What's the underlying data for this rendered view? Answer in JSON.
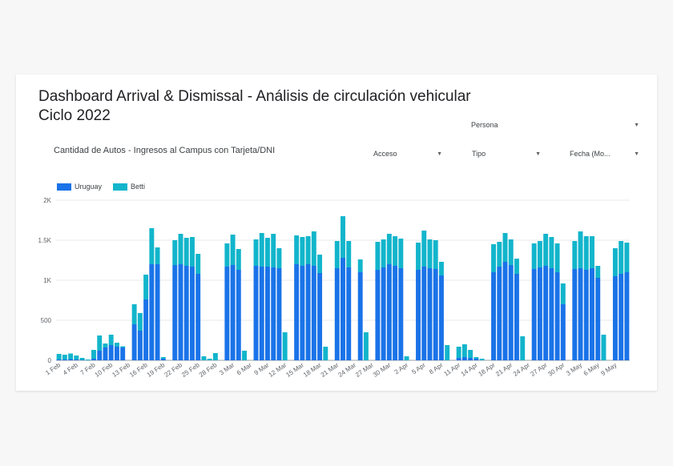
{
  "dashboard": {
    "title": "Dashboard Arrival & Dismissal - Análisis de circulación vehicular",
    "subtitle": "Ciclo 2022"
  },
  "filters": {
    "persona": "Persona",
    "acceso": "Acceso",
    "tipo": "Tipo",
    "fecha": "Fecha (Mo..."
  },
  "icons": {
    "dropdown": "caret-down-icon"
  },
  "colors": {
    "uruguay": "#1a73e8",
    "betti": "#12b5cb",
    "grid": "#e8eaed",
    "axis": "#9aa0a6"
  },
  "chart_data": {
    "type": "bar",
    "stacked": true,
    "title": "Cantidad de Autos - Ingresos al Campus con Tarjeta/DNI",
    "ylim": [
      0,
      2000
    ],
    "yticks": [
      0,
      500,
      1000,
      1500,
      2000
    ],
    "ytick_labels": [
      "0",
      "500",
      "1K",
      "1.5K",
      "2K"
    ],
    "grid": true,
    "legend_position": "top-left",
    "xtick_labels": [
      "1 Feb",
      "4 Feb",
      "7 Feb",
      "10 Feb",
      "13 Feb",
      "16 Feb",
      "19 Feb",
      "22 Feb",
      "25 Feb",
      "28 Feb",
      "3 Mar",
      "6 Mar",
      "9 Mar",
      "12 Mar",
      "15 Mar",
      "18 Mar",
      "21 Mar",
      "24 Mar",
      "27 Mar",
      "30 Mar",
      "2 Apr",
      "5 Apr",
      "8 Apr",
      "11 Apr",
      "14 Apr",
      "18 Apr",
      "21 Apr",
      "24 Apr",
      "27 Apr",
      "30 Apr",
      "3 May",
      "6 May",
      "9 May"
    ],
    "series": [
      {
        "name": "Uruguay",
        "values": [
          10,
          10,
          15,
          10,
          5,
          0,
          20,
          120,
          160,
          190,
          170,
          160,
          0,
          450,
          370,
          760,
          1200,
          1200,
          20,
          0,
          1190,
          1200,
          1180,
          1170,
          1080,
          0,
          0,
          0,
          0,
          1170,
          1190,
          1130,
          0,
          0,
          1180,
          1170,
          1170,
          1160,
          1150,
          0,
          0,
          1200,
          1180,
          1200,
          1180,
          1090,
          0,
          0,
          1150,
          1280,
          1160,
          0,
          1100,
          0,
          0,
          1130,
          1160,
          1200,
          1180,
          1150,
          0,
          0,
          1130,
          1170,
          1150,
          1140,
          1060,
          0,
          0,
          30,
          40,
          30,
          20,
          0,
          0,
          1100,
          1170,
          1230,
          1190,
          1080,
          0,
          0,
          1140,
          1160,
          1180,
          1150,
          1100,
          700,
          0,
          1140,
          1150,
          1130,
          1150,
          1030,
          0,
          0,
          1050,
          1080,
          1100
        ],
        "values_note": "Uruguay segment per day"
      },
      {
        "name": "Betti",
        "values": [
          70,
          60,
          70,
          50,
          25,
          10,
          110,
          190,
          50,
          130,
          50,
          15,
          0,
          250,
          220,
          310,
          450,
          210,
          20,
          0,
          310,
          380,
          350,
          370,
          250,
          50,
          20,
          90,
          0,
          290,
          380,
          260,
          120,
          0,
          330,
          420,
          360,
          420,
          250,
          350,
          0,
          360,
          360,
          350,
          430,
          230,
          170,
          0,
          340,
          520,
          330,
          0,
          160,
          350,
          0,
          350,
          350,
          380,
          370,
          370,
          50,
          0,
          340,
          450,
          360,
          360,
          170,
          190,
          0,
          140,
          160,
          100,
          20,
          20,
          0,
          350,
          310,
          360,
          320,
          190,
          300,
          0,
          320,
          330,
          400,
          390,
          360,
          260,
          0,
          350,
          460,
          420,
          400,
          150,
          320,
          0,
          350,
          410,
          370
        ]
      }
    ]
  }
}
